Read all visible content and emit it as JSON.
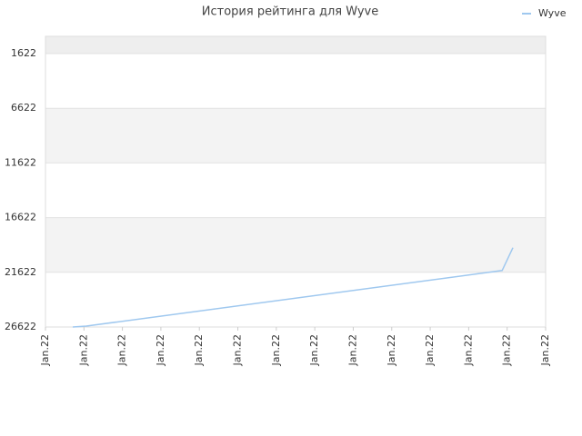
{
  "chart_data": {
    "type": "line",
    "title": "История рейтинга для Wyve",
    "x": [
      0.71,
      1.06,
      11.87,
      12.15
    ],
    "series": [
      {
        "name": "Wyve",
        "color": "#9fc8ef",
        "values": [
          26622,
          26539,
          21455,
          19372
        ]
      }
    ],
    "xlim": [
      0,
      13
    ],
    "xticks": [
      {
        "value": 0,
        "label": "Jan.22"
      },
      {
        "value": 1,
        "label": "Jan.22"
      },
      {
        "value": 2,
        "label": "Jan.22"
      },
      {
        "value": 3,
        "label": "Jan.22"
      },
      {
        "value": 4,
        "label": "Jan.22"
      },
      {
        "value": 5,
        "label": "Jan.22"
      },
      {
        "value": 6,
        "label": "Jan.22"
      },
      {
        "value": 7,
        "label": "Jan.22"
      },
      {
        "value": 8,
        "label": "Jan.22"
      },
      {
        "value": 9,
        "label": "Jan.22"
      },
      {
        "value": 10,
        "label": "Jan.22"
      },
      {
        "value": 11,
        "label": "Jan.22"
      },
      {
        "value": 12,
        "label": "Jan.22"
      },
      {
        "value": 13,
        "label": "Jan.22"
      }
    ],
    "ylim": [
      26622,
      39
    ],
    "yticks": [
      1622,
      6622,
      11622,
      16622,
      21622,
      26622
    ],
    "grid": true,
    "legend": "top-right"
  }
}
